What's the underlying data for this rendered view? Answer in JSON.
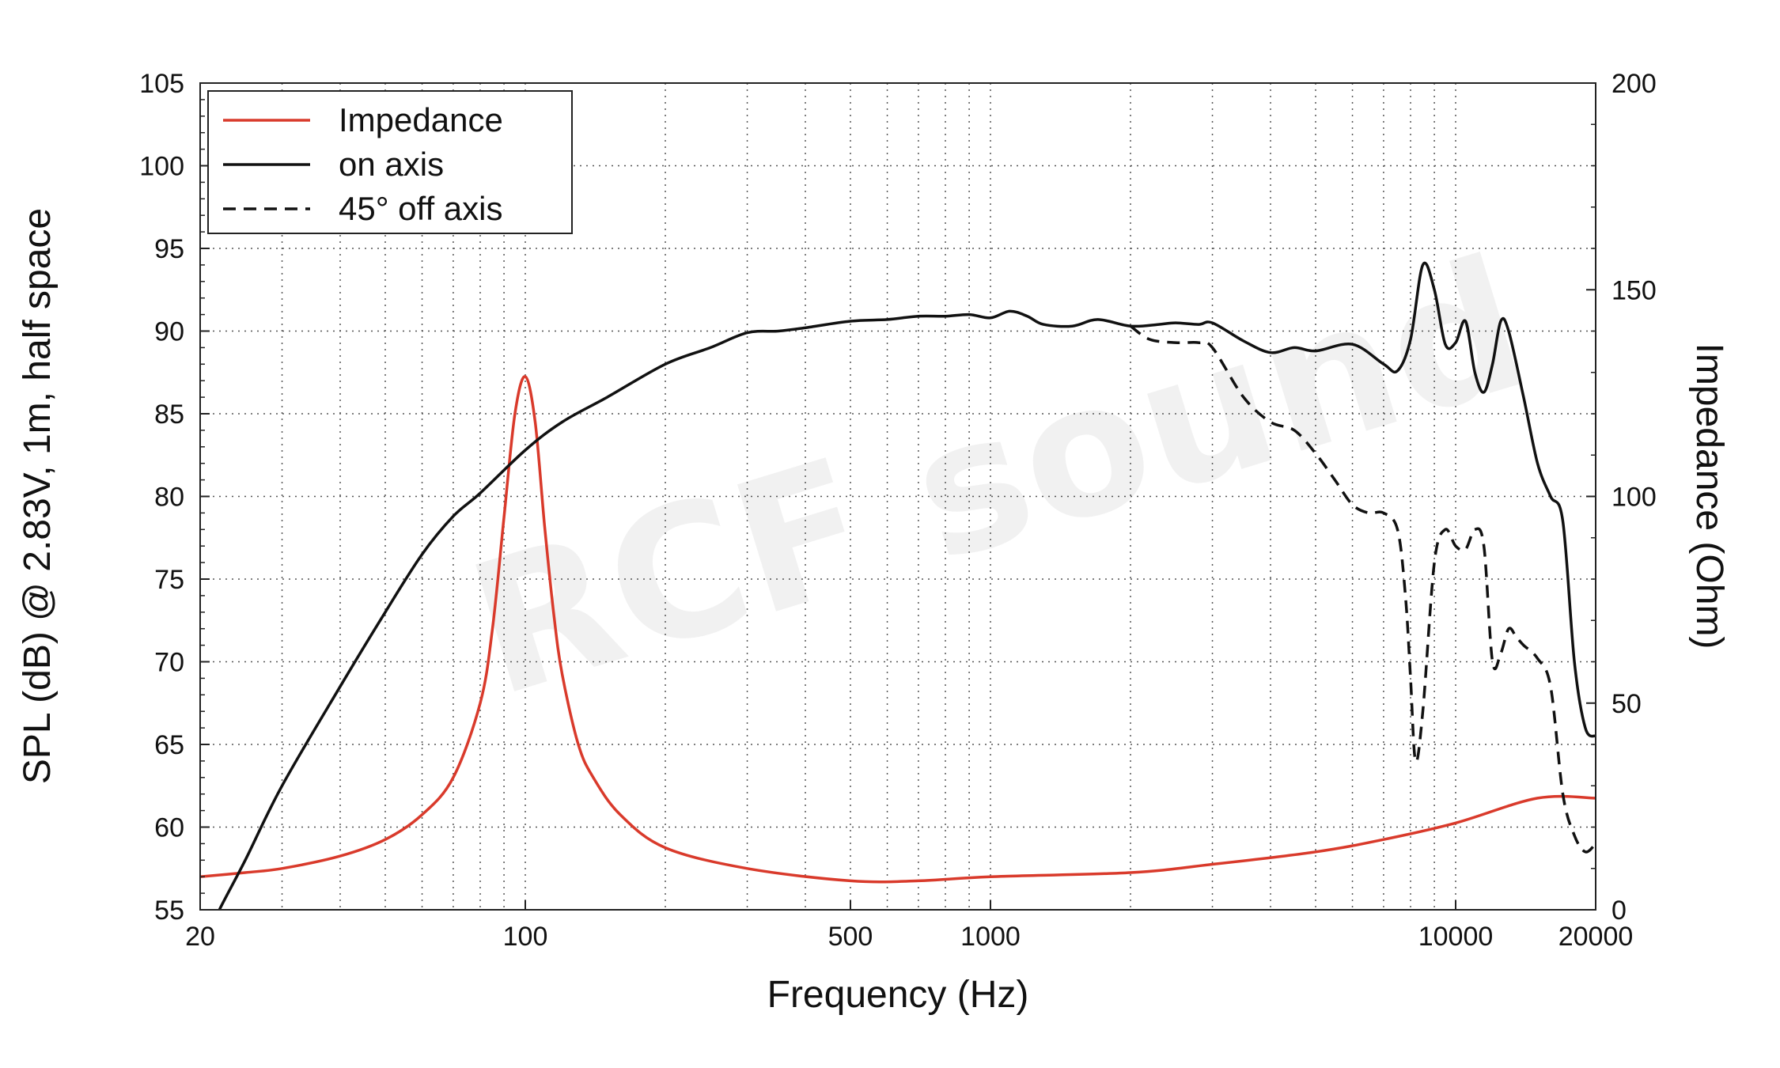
{
  "chart_data": {
    "type": "line",
    "xlabel": "Frequency (Hz)",
    "ylabel": "SPL (dB) @ 2.83V, 1m, half space",
    "y2label": "Impedance (Ohm)",
    "x_scale": "log",
    "xlim": [
      20,
      20000
    ],
    "ylim": [
      55,
      105
    ],
    "y2lim": [
      0,
      200
    ],
    "x_ticks": [
      20,
      100,
      500,
      1000,
      10000,
      20000
    ],
    "y_ticks": [
      55,
      60,
      65,
      70,
      75,
      80,
      85,
      90,
      95,
      100,
      105
    ],
    "y2_ticks": [
      0,
      50,
      100,
      150,
      200
    ],
    "grid": true,
    "legend_position": "top-left",
    "watermark": "RCF sound",
    "colors": {
      "impedance": "#d93a2b",
      "on_axis": "#111111",
      "off_axis": "#111111",
      "grid": "#555555"
    },
    "series": [
      {
        "name": "Impedance",
        "axis": "right",
        "style": "solid",
        "x": [
          20,
          25,
          30,
          40,
          50,
          60,
          70,
          80,
          85,
          90,
          95,
          100,
          105,
          110,
          115,
          120,
          130,
          140,
          160,
          200,
          300,
          500,
          700,
          1000,
          2000,
          3000,
          5000,
          7000,
          10000,
          15000,
          20000
        ],
        "y": [
          8,
          9,
          10,
          13,
          17,
          23,
          32,
          50,
          68,
          95,
          120,
          129,
          118,
          93,
          72,
          57,
          40,
          32,
          23,
          15,
          10,
          7,
          7,
          8,
          9,
          11,
          14,
          17,
          21,
          27,
          27
        ]
      },
      {
        "name": "on axis",
        "axis": "left",
        "style": "solid",
        "x": [
          20,
          22,
          25,
          30,
          40,
          50,
          60,
          70,
          80,
          100,
          120,
          150,
          200,
          250,
          300,
          350,
          400,
          500,
          600,
          700,
          800,
          900,
          1000,
          1100,
          1200,
          1300,
          1500,
          1700,
          2000,
          2300,
          2500,
          2800,
          3000,
          3500,
          4000,
          4500,
          5000,
          6000,
          7000,
          7500,
          8000,
          8500,
          9000,
          9500,
          10000,
          10500,
          11000,
          11500,
          12000,
          12500,
          13000,
          14000,
          15000,
          16000,
          17000,
          18000,
          19000,
          20000
        ],
        "y": [
          52.5,
          55,
          58,
          62.5,
          68.5,
          73,
          76.5,
          78.8,
          80.2,
          82.8,
          84.5,
          86,
          88,
          89,
          89.9,
          90,
          90.2,
          90.6,
          90.7,
          90.9,
          90.9,
          91,
          90.8,
          91.2,
          90.9,
          90.4,
          90.3,
          90.7,
          90.3,
          90.4,
          90.5,
          90.4,
          90.5,
          89.4,
          88.7,
          89,
          88.8,
          89.2,
          88,
          87.6,
          89.5,
          94,
          92.5,
          89.2,
          89.3,
          90.6,
          87.5,
          86.3,
          88,
          90.6,
          90,
          86,
          82,
          80,
          78.5,
          70,
          66,
          65.5
        ]
      },
      {
        "name": "45° off axis",
        "axis": "left",
        "style": "dashed",
        "x": [
          2000,
          2200,
          2500,
          2800,
          3000,
          3500,
          4000,
          4500,
          5000,
          5500,
          6000,
          6500,
          7000,
          7500,
          7800,
          8000,
          8200,
          8500,
          9000,
          9500,
          10000,
          10500,
          11000,
          11500,
          12000,
          12500,
          13000,
          13500,
          14000,
          15000,
          16000,
          17000,
          18000,
          19000,
          20000
        ],
        "y": [
          90.3,
          89.5,
          89.3,
          89.3,
          89,
          86,
          84.5,
          84,
          82.6,
          81,
          79.5,
          79,
          79,
          78,
          74,
          69,
          64,
          67,
          76,
          78,
          77,
          76.8,
          78,
          77,
          70,
          70.5,
          72,
          71.5,
          71,
          70.2,
          68.5,
          62,
          59.5,
          58.5,
          59
        ]
      }
    ]
  }
}
